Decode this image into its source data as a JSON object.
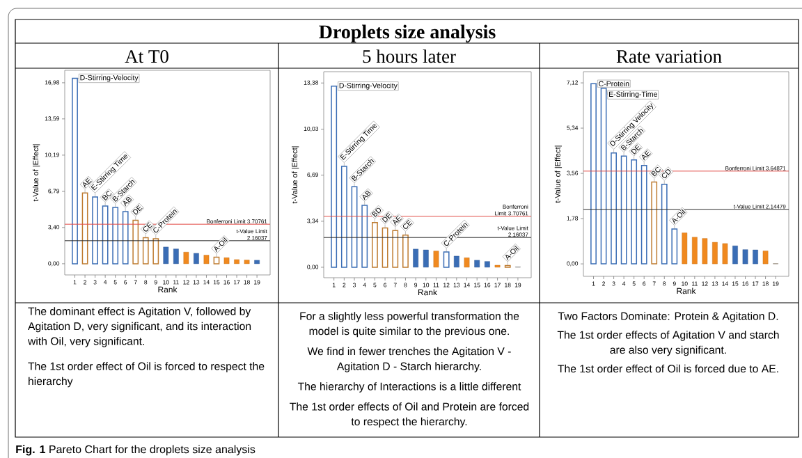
{
  "chart_data": [
    {
      "type": "other",
      "title": "Droplets size analysis",
      "annotations": [
        "**Fig. 1** Pareto Chart for the droplets size analysis"
      ]
    },
    {
      "type": "bar",
      "title": "At T0",
      "xlabel": "Rank",
      "ylabel": "t-Value of |Effect|",
      "categories": [
        "1",
        "2",
        "3",
        "4",
        "5",
        "6",
        "7",
        "8",
        "9",
        "10",
        "11",
        "12",
        "13",
        "14",
        "15",
        "16",
        "17",
        "18",
        "19"
      ],
      "values": [
        17.4,
        6.64,
        6.27,
        5.42,
        5.29,
        4.9,
        4.07,
        2.44,
        2.35,
        1.57,
        1.39,
        1.09,
        0.98,
        0.81,
        0.61,
        0.57,
        0.39,
        0.35,
        0.33
      ],
      "colors": [
        "#3a6db5",
        "#bf7c31",
        "#3a6db5",
        "#3a6db5",
        "#3a6db5",
        "#3a6db5",
        "#bf7c31",
        "#bf7c31",
        "#bf7c31",
        "#3a6db5",
        "#3a6db5",
        "#f0891f",
        "#3a6db5",
        "#f0891f",
        "#bf7c31",
        "#f0891f",
        "#f0891f",
        "#f0891f",
        "#3a6db5"
      ],
      "ylim": [
        -1.05,
        18.15
      ],
      "yticks": [
        {
          "value": 0,
          "label": "0,00"
        },
        {
          "value": 3.4,
          "label": "3,40"
        },
        {
          "value": 6.79,
          "label": "6,79"
        },
        {
          "value": 10.19,
          "label": "10,19"
        },
        {
          "value": 13.59,
          "label": "13,59"
        },
        {
          "value": 16.98,
          "label": "16,98"
        }
      ],
      "ref_lines": [
        {
          "axis": "y",
          "value": 3.70761,
          "label": "Bonferroni Limit 3.70761",
          "color": "#e24a45"
        },
        {
          "axis": "y",
          "value": 2.16037,
          "label": "t-Value Limit 2.16037",
          "color": "#2b2b2b"
        }
      ],
      "annotations": [
        {
          "text": "D-Stirring-Velocity",
          "x": "1",
          "y": 17.4
        },
        {
          "text": "AE",
          "x": "2",
          "y": 6.64
        },
        {
          "text": "E-Stirring Time",
          "x": "3",
          "y": 6.27
        },
        {
          "text": "BC",
          "x": "4",
          "y": 5.42
        },
        {
          "text": "B-Starch",
          "x": "5",
          "y": 5.29
        },
        {
          "text": "AB",
          "x": "6",
          "y": 4.9
        },
        {
          "text": "DE",
          "x": "7",
          "y": 4.07
        },
        {
          "text": "CE",
          "x": "8",
          "y": 2.44
        },
        {
          "text": "C-Protein",
          "x": "9",
          "y": 2.35
        },
        {
          "text": "A-Oil",
          "x": "15",
          "y": 0.61
        },
        "The dominant effect is Agitation V, followed by Agitation D, very significant, and its interaction with Oil, very significant.",
        "The 1st order effect of Oil is forced to respect the hierarchy"
      ]
    },
    {
      "type": "bar",
      "title": "5 hours later",
      "xlabel": "Rank",
      "ylabel": "t-Value of |Effect|",
      "categories": [
        "1",
        "2",
        "3",
        "4",
        "5",
        "6",
        "7",
        "8",
        "9",
        "10",
        "11",
        "12",
        "13",
        "14",
        "15",
        "16",
        "17",
        "18",
        "19"
      ],
      "values": [
        13.15,
        7.32,
        5.85,
        4.5,
        3.25,
        2.85,
        2.66,
        2.33,
        1.32,
        1.26,
        1.18,
        1.11,
        0.81,
        0.69,
        0.51,
        0.42,
        0.15,
        0.13,
        0.02
      ],
      "colors": [
        "#3a6db5",
        "#3a6db5",
        "#3a6db5",
        "#3a6db5",
        "#bf7c31",
        "#bf7c31",
        "#bf7c31",
        "#bf7c31",
        "#3a6db5",
        "#3a6db5",
        "#f0891f",
        "#3a6db5",
        "#3a6db5",
        "#f0891f",
        "#3a6db5",
        "#3a6db5",
        "#f0891f",
        "#bf7c31",
        "#7a7a7a"
      ],
      "ylim": [
        -0.76,
        14.2
      ],
      "yticks": [
        {
          "value": 0,
          "label": "0,00"
        },
        {
          "value": 3.34,
          "label": "3,34"
        },
        {
          "value": 6.69,
          "label": "6,69"
        },
        {
          "value": 10.03,
          "label": "10,03"
        },
        {
          "value": 13.38,
          "label": "13,38"
        }
      ],
      "ref_lines": [
        {
          "axis": "y",
          "value": 3.70761,
          "label": "Bonferroni Limit 3.70761",
          "color": "#e24a45"
        },
        {
          "axis": "y",
          "value": 2.16037,
          "label": "t-Value Limit 2.16037",
          "color": "#2b2b2b"
        }
      ],
      "annotations": [
        {
          "text": "D-Stirring-Velocity",
          "x": "1",
          "y": 13.15
        },
        {
          "text": "E-Stirring Time",
          "x": "2",
          "y": 7.32
        },
        {
          "text": "B-Starch",
          "x": "3",
          "y": 5.85
        },
        {
          "text": "AB",
          "x": "4",
          "y": 4.5
        },
        {
          "text": "BD",
          "x": "5",
          "y": 3.25
        },
        {
          "text": "DE",
          "x": "6",
          "y": 2.85
        },
        {
          "text": "AE",
          "x": "7",
          "y": 2.66
        },
        {
          "text": "CE",
          "x": "8",
          "y": 2.33
        },
        {
          "text": "C-Protein",
          "x": "12",
          "y": 1.11
        },
        {
          "text": "A-Oil",
          "x": "18",
          "y": 0.13
        },
        "For a slightly less powerful transformation the model is quite similar to the previous one.",
        "We find in fewer trenches the Agitation V - Agitation D - Starch hierarchy.",
        "The hierarchy of Interactions is a little different",
        "The 1st order effects of Oil and Protein are forced to respect the hierarchy."
      ]
    },
    {
      "type": "bar",
      "title": "Rate variation",
      "xlabel": "Rank",
      "ylabel": "t-Value of |Effect|",
      "categories": [
        "1",
        "2",
        "3",
        "4",
        "5",
        "6",
        "7",
        "8",
        "9",
        "10",
        "11",
        "12",
        "13",
        "14",
        "15",
        "16",
        "17",
        "18",
        "19"
      ],
      "values": [
        7.09,
        6.91,
        4.36,
        4.24,
        4.09,
        3.87,
        3.22,
        3.13,
        1.37,
        1.22,
        1.05,
        1.0,
        0.85,
        0.8,
        0.71,
        0.56,
        0.55,
        0.51,
        0.01
      ],
      "colors": [
        "#3a6db5",
        "#3a6db5",
        "#3a6db5",
        "#3a6db5",
        "#3a6db5",
        "#3a6db5",
        "#bf7c31",
        "#3a6db5",
        "#3a6db5",
        "#f0891f",
        "#f0891f",
        "#f0891f",
        "#f0891f",
        "#f0891f",
        "#3a6db5",
        "#3a6db5",
        "#3a6db5",
        "#f0891f",
        "#8c7a66"
      ],
      "ylim": [
        -0.49,
        7.56
      ],
      "yticks": [
        {
          "value": 0,
          "label": "0,00"
        },
        {
          "value": 1.78,
          "label": "1,78"
        },
        {
          "value": 3.56,
          "label": "3,56"
        },
        {
          "value": 5.34,
          "label": "5,34"
        },
        {
          "value": 7.12,
          "label": "7,12"
        }
      ],
      "ref_lines": [
        {
          "axis": "y",
          "value": 3.64871,
          "label": "Bonferroni Limit 3.64871",
          "color": "#e24a45"
        },
        {
          "axis": "y",
          "value": 2.14479,
          "label": "t-Value Limit 2.14479",
          "color": "#2b2b2b"
        }
      ],
      "annotations": [
        {
          "text": "C-Protein",
          "x": "1",
          "y": 7.09
        },
        {
          "text": "E-Stirring-Time",
          "x": "2",
          "y": 6.91
        },
        {
          "text": "D-Stirring Velocity",
          "x": "3",
          "y": 4.36
        },
        {
          "text": "B-Starch",
          "x": "4",
          "y": 4.24
        },
        {
          "text": "DE",
          "x": "5",
          "y": 4.09
        },
        {
          "text": "AE",
          "x": "6",
          "y": 3.87
        },
        {
          "text": "BC",
          "x": "7",
          "y": 3.22
        },
        {
          "text": "CD",
          "x": "8",
          "y": 3.13
        },
        {
          "text": "A-Oil",
          "x": "9",
          "y": 1.37
        },
        "Two Factors Dominate: Protein & Agitation D.",
        "The 1st order effects of Agitation V and starch are also very significant.",
        "The 1st order effect of Oil is forced due to AE."
      ]
    }
  ]
}
